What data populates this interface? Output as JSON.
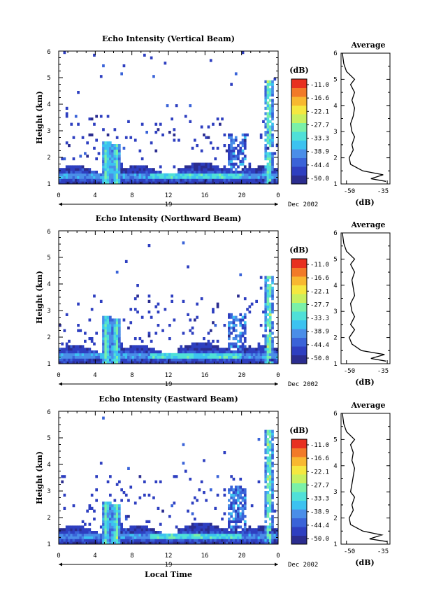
{
  "chart_data": [
    {
      "type": "heatmap",
      "title": "Echo Intensity (Vertical Beam)",
      "ylabel": "Height (km)",
      "xlabel": "",
      "x_ticks": [
        "0",
        "4",
        "8",
        "12",
        "16",
        "20",
        "0"
      ],
      "y_ticks": [
        "1",
        "2",
        "3",
        "4",
        "5",
        "6"
      ],
      "day_label": "19",
      "date_label": "Dec 2002",
      "xlim": [
        0,
        24
      ],
      "ylim": [
        1,
        6
      ],
      "colorbar": {
        "title": "(dB)",
        "levels": [
          "-11.0",
          "-16.6",
          "-22.1",
          "-27.7",
          "-33.3",
          "-38.9",
          "-44.4",
          "-50.0"
        ],
        "range": [
          -52,
          -10
        ]
      },
      "grid": "on",
      "profile": {
        "title": "Average",
        "xlabel": "(dB)",
        "x_ticks": [
          "-50",
          "-35"
        ],
        "xlim": [
          -52,
          -34
        ],
        "height": [
          1.1,
          1.2,
          1.35,
          1.5,
          1.75,
          2.0,
          2.3,
          2.5,
          2.8,
          3.0,
          3.3,
          3.6,
          3.9,
          4.2,
          4.5,
          4.8,
          5.0,
          5.3,
          5.6,
          6.0
        ],
        "db": [
          -35.5,
          -41.0,
          -36.5,
          -44.0,
          -48.5,
          -49.0,
          -47.5,
          -48.0,
          -47.0,
          -48.0,
          -48.5,
          -47.5,
          -47.0,
          -48.0,
          -47.0,
          -48.5,
          -47.0,
          -50.0,
          -51.0,
          -51.5
        ]
      }
    },
    {
      "type": "heatmap",
      "title": "Echo Intensity (Northward Beam)",
      "ylabel": "Height (km)",
      "xlabel": "",
      "x_ticks": [
        "0",
        "4",
        "8",
        "12",
        "16",
        "20",
        "0"
      ],
      "y_ticks": [
        "1",
        "2",
        "3",
        "4",
        "5",
        "6"
      ],
      "day_label": "19",
      "date_label": "Dec 2002",
      "xlim": [
        0,
        24
      ],
      "ylim": [
        1,
        6
      ],
      "colorbar": {
        "title": "(dB)",
        "levels": [
          "-11.0",
          "-16.6",
          "-22.1",
          "-27.7",
          "-33.3",
          "-38.9",
          "-44.4",
          "-50.0"
        ],
        "range": [
          -52,
          -10
        ]
      },
      "grid": "on",
      "profile": {
        "title": "Average",
        "xlabel": "(dB)",
        "x_ticks": [
          "-50",
          "-35"
        ],
        "xlim": [
          -52,
          -34
        ],
        "height": [
          1.1,
          1.2,
          1.35,
          1.5,
          1.75,
          2.0,
          2.3,
          2.5,
          2.8,
          3.0,
          3.3,
          3.6,
          3.9,
          4.2,
          4.5,
          4.8,
          5.0,
          5.3,
          5.6,
          6.0
        ],
        "db": [
          -35.5,
          -41.0,
          -36.0,
          -44.5,
          -48.0,
          -49.0,
          -47.0,
          -48.5,
          -47.0,
          -48.0,
          -48.5,
          -47.0,
          -47.5,
          -48.0,
          -47.0,
          -48.5,
          -47.0,
          -50.0,
          -51.0,
          -51.5
        ]
      }
    },
    {
      "type": "heatmap",
      "title": "Echo Intensity (Eastward Beam)",
      "ylabel": "Height (km)",
      "xlabel": "Local Time",
      "x_ticks": [
        "0",
        "4",
        "8",
        "12",
        "16",
        "20",
        "0"
      ],
      "y_ticks": [
        "1",
        "2",
        "3",
        "4",
        "5",
        "6"
      ],
      "day_label": "19",
      "date_label": "Dec 2002",
      "xlim": [
        0,
        24
      ],
      "ylim": [
        1,
        6
      ],
      "colorbar": {
        "title": "(dB)",
        "levels": [
          "-11.0",
          "-16.6",
          "-22.1",
          "-27.7",
          "-33.3",
          "-38.9",
          "-44.4",
          "-50.0"
        ],
        "range": [
          -52,
          -10
        ]
      },
      "grid": "on",
      "profile": {
        "title": "Average",
        "xlabel": "(dB)",
        "x_ticks": [
          "-50",
          "-35"
        ],
        "xlim": [
          -52,
          -34
        ],
        "height": [
          1.1,
          1.2,
          1.35,
          1.5,
          1.75,
          2.0,
          2.3,
          2.5,
          2.8,
          3.0,
          3.3,
          3.6,
          3.9,
          4.2,
          4.5,
          4.8,
          5.0,
          5.3,
          5.6,
          6.0
        ],
        "db": [
          -35.0,
          -41.5,
          -37.0,
          -44.0,
          -48.5,
          -49.0,
          -47.5,
          -48.0,
          -47.0,
          -48.5,
          -48.0,
          -47.5,
          -47.0,
          -48.0,
          -47.5,
          -48.5,
          -47.0,
          -50.0,
          -51.0,
          -51.5
        ]
      }
    }
  ],
  "colors": {
    "colormap": [
      "#2b2d8f",
      "#2e3fc0",
      "#3a63d8",
      "#4a8ee8",
      "#3cc2f0",
      "#4fe0d8",
      "#7af0a8",
      "#c8f060",
      "#f5e840",
      "#f8b830",
      "#f27a28",
      "#e83020"
    ],
    "background": "#ffffff",
    "ink": "#000000"
  }
}
